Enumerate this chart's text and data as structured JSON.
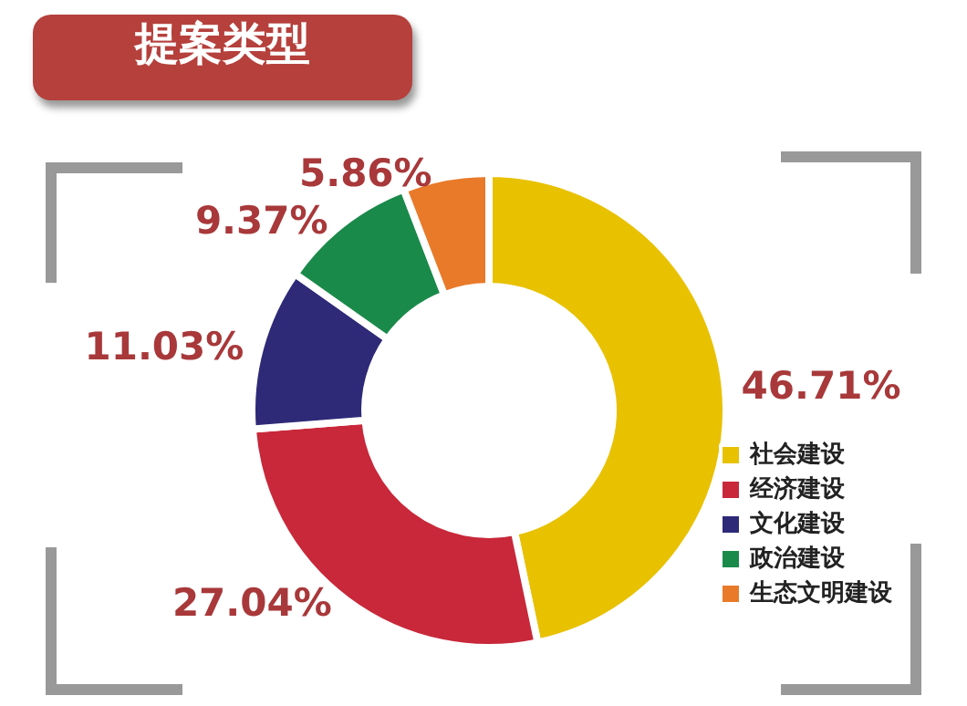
{
  "chart_data": {
    "type": "donut",
    "title": "提案类型",
    "categories": [
      "社会建设",
      "经济建设",
      "文化建设",
      "政治建设",
      "生态文明建设"
    ],
    "values": [
      46.71,
      27.04,
      11.03,
      9.37,
      5.86
    ],
    "colors": [
      "#e8c100",
      "#c8283a",
      "#2e2a78",
      "#1a8a4a",
      "#e87a2a"
    ],
    "value_labels": [
      "46.71%",
      "27.04%",
      "11.03%",
      "9.37%",
      "5.86%"
    ],
    "legend": "right"
  }
}
